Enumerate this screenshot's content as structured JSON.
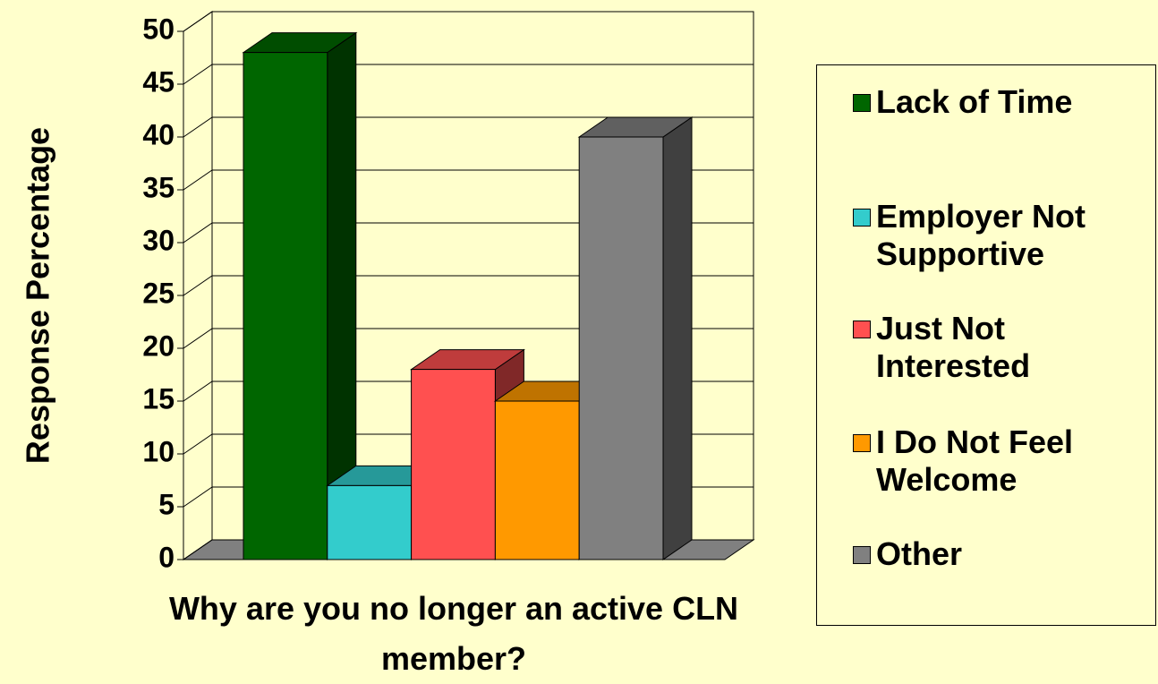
{
  "chart_data": {
    "type": "bar3d",
    "y_label": "Response Percentage",
    "x_label": "Why are you no longer an active CLN member?",
    "series": [
      {
        "name": "Lack of Time",
        "color": "#006600",
        "values": [
          48
        ]
      },
      {
        "name": "Employer Not Supportive",
        "color": "#33cccc",
        "values": [
          7
        ]
      },
      {
        "name": "Just Not Interested",
        "color": "#ff5050",
        "values": [
          18
        ]
      },
      {
        "name": "I Do Not Feel Welcome",
        "color": "#ff9900",
        "values": [
          15
        ]
      },
      {
        "name": "Other",
        "color": "#808080",
        "values": [
          40
        ]
      }
    ],
    "ylim": [
      0,
      50
    ],
    "yticks": [
      0,
      5,
      10,
      15,
      20,
      25,
      30,
      35,
      40,
      45,
      50
    ],
    "grid": true,
    "legend": "right"
  }
}
